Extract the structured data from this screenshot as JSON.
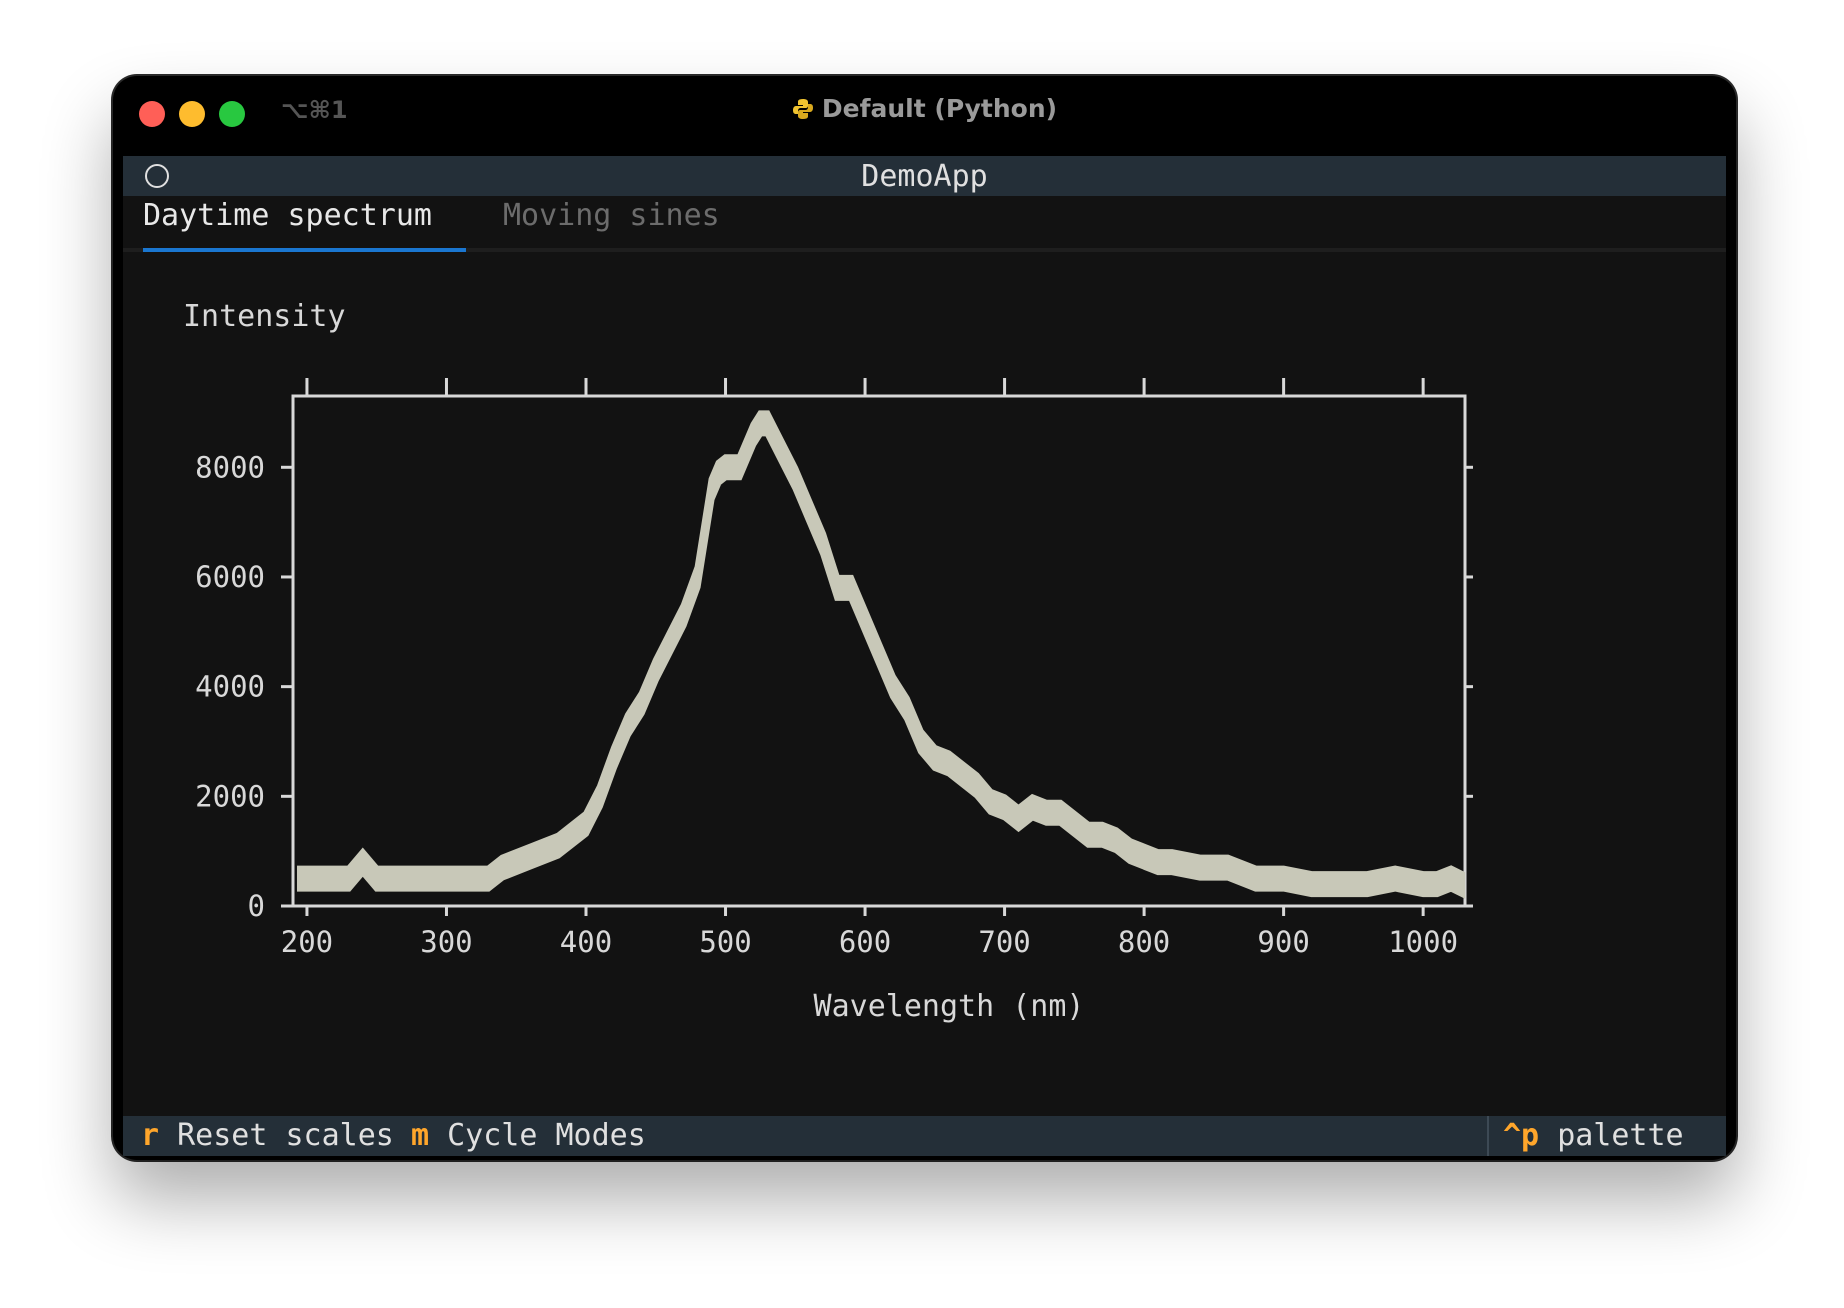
{
  "window": {
    "shortcut": "⌥⌘1",
    "title": "Default (Python)",
    "title_icon": "python-icon"
  },
  "app": {
    "title": "DemoApp",
    "tabs": [
      {
        "label": "Daytime spectrum",
        "active": true
      },
      {
        "label": "Moving sines",
        "active": false
      }
    ]
  },
  "footer": {
    "bindings": [
      {
        "key": "r",
        "label": "Reset scales"
      },
      {
        "key": "m",
        "label": "Cycle Modes"
      }
    ],
    "palette": {
      "key": "^p",
      "label": "palette"
    }
  },
  "colors": {
    "accent": "#1a76d0",
    "key": "#ffa62b",
    "plot_fill": "#c8c8b8",
    "header_bg": "#242f38",
    "terminal_bg": "#121212"
  },
  "chart_data": {
    "type": "line",
    "title": "",
    "xlabel": "Wavelength (nm)",
    "ylabel": "Intensity",
    "xlim": [
      190,
      1030
    ],
    "ylim": [
      0,
      9300
    ],
    "xticks": [
      200,
      300,
      400,
      500,
      600,
      700,
      800,
      900,
      1000
    ],
    "yticks": [
      0,
      2000,
      4000,
      6000,
      8000
    ],
    "grid": false,
    "series": [
      {
        "x": [
          195,
          230,
          240,
          250,
          300,
          330,
          340,
          360,
          380,
          400,
          410,
          420,
          430,
          440,
          450,
          460,
          470,
          480,
          490,
          495,
          500,
          510,
          520,
          525,
          530,
          540,
          550,
          560,
          570,
          575,
          580,
          590,
          600,
          610,
          620,
          630,
          640,
          650,
          660,
          670,
          680,
          690,
          700,
          710,
          720,
          730,
          740,
          750,
          760,
          770,
          780,
          790,
          800,
          810,
          820,
          840,
          860,
          880,
          900,
          920,
          940,
          960,
          980,
          1000,
          1010,
          1020,
          1028
        ],
        "y": [
          500,
          500,
          800,
          500,
          500,
          500,
          700,
          900,
          1100,
          1500,
          2000,
          2700,
          3300,
          3700,
          4300,
          4800,
          5300,
          6000,
          7600,
          7900,
          8000,
          8000,
          8600,
          8800,
          8800,
          8300,
          7800,
          7200,
          6600,
          6200,
          5800,
          5800,
          5200,
          4600,
          4000,
          3600,
          3000,
          2700,
          2600,
          2400,
          2200,
          1900,
          1800,
          1600,
          1800,
          1700,
          1700,
          1500,
          1300,
          1300,
          1200,
          1000,
          900,
          800,
          800,
          700,
          700,
          500,
          500,
          400,
          400,
          400,
          500,
          400,
          400,
          500,
          400
        ]
      }
    ]
  }
}
